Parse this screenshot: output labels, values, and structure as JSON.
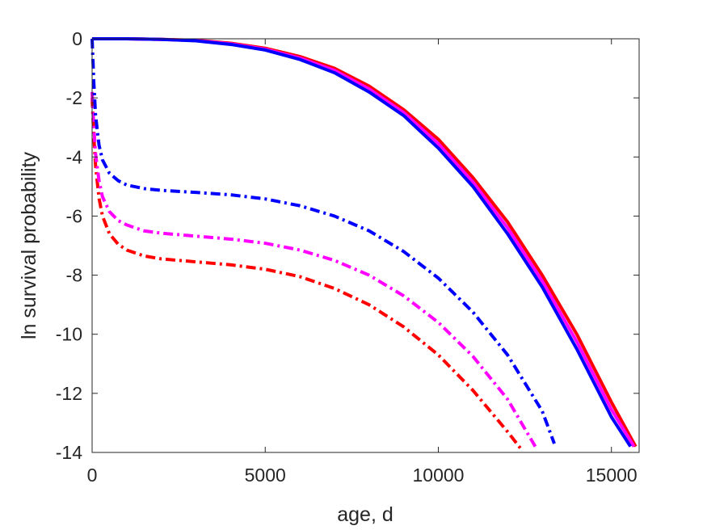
{
  "chart_data": {
    "type": "line",
    "title": "",
    "xlabel": "age, d",
    "ylabel": "ln survival probability",
    "xlim": [
      0,
      15800
    ],
    "ylim": [
      -14,
      0
    ],
    "grid": false,
    "legend": "none",
    "xticks": [
      0,
      5000,
      10000,
      15000
    ],
    "xtick_labels": [
      "0",
      "5000",
      "10000",
      "15000"
    ],
    "yticks": [
      0,
      -2,
      -4,
      -6,
      -8,
      -10,
      -12,
      -14
    ],
    "ytick_labels": [
      "0",
      "-2",
      "-4",
      "-6",
      "-8",
      "-10",
      "-12",
      "-14"
    ],
    "series": [
      {
        "color": "#ff0000",
        "style": "solid",
        "x": [
          0,
          1000,
          2000,
          3000,
          4000,
          5000,
          6000,
          7000,
          8000,
          9000,
          10000,
          11000,
          12000,
          13000,
          14000,
          15000,
          15700
        ],
        "y": [
          0,
          0,
          -0.02,
          -0.05,
          -0.15,
          -0.32,
          -0.6,
          -1.0,
          -1.6,
          -2.4,
          -3.4,
          -4.7,
          -6.2,
          -8.0,
          -10.0,
          -12.3,
          -13.8
        ]
      },
      {
        "color": "#ff00ff",
        "style": "solid",
        "x": [
          0,
          1000,
          2000,
          3000,
          4000,
          5000,
          6000,
          7000,
          8000,
          9000,
          10000,
          11000,
          12000,
          13000,
          14000,
          15000,
          15650
        ],
        "y": [
          0,
          0,
          -0.02,
          -0.06,
          -0.17,
          -0.35,
          -0.65,
          -1.07,
          -1.7,
          -2.5,
          -3.55,
          -4.85,
          -6.4,
          -8.2,
          -10.25,
          -12.55,
          -13.8
        ]
      },
      {
        "color": "#0000ff",
        "style": "solid",
        "x": [
          0,
          1000,
          2000,
          3000,
          4000,
          5000,
          6000,
          7000,
          8000,
          9000,
          10000,
          11000,
          12000,
          13000,
          14000,
          15000,
          15550
        ],
        "y": [
          0,
          0,
          -0.02,
          -0.07,
          -0.19,
          -0.38,
          -0.7,
          -1.15,
          -1.8,
          -2.6,
          -3.7,
          -5.0,
          -6.6,
          -8.4,
          -10.5,
          -12.8,
          -13.8
        ]
      },
      {
        "color": "#ff0000",
        "style": "dashdot",
        "x": [
          0,
          50,
          100,
          200,
          300,
          500,
          750,
          1000,
          1500,
          2000,
          3000,
          4000,
          5000,
          6000,
          7000,
          8000,
          9000,
          10000,
          11000,
          12000,
          12400
        ],
        "y": [
          -2.0,
          -3.3,
          -4.3,
          -5.4,
          -6.0,
          -6.6,
          -6.95,
          -7.15,
          -7.35,
          -7.45,
          -7.55,
          -7.65,
          -7.8,
          -8.05,
          -8.45,
          -9.0,
          -9.75,
          -10.7,
          -11.9,
          -13.3,
          -13.9
        ]
      },
      {
        "color": "#ff00ff",
        "style": "dashdot",
        "x": [
          0,
          50,
          100,
          200,
          300,
          500,
          750,
          1000,
          1500,
          2000,
          3000,
          4000,
          5000,
          6000,
          7000,
          8000,
          9000,
          10000,
          11000,
          12000,
          12800
        ],
        "y": [
          -1.8,
          -3.0,
          -3.9,
          -4.8,
          -5.35,
          -5.85,
          -6.15,
          -6.3,
          -6.5,
          -6.58,
          -6.68,
          -6.78,
          -6.92,
          -7.15,
          -7.5,
          -8.0,
          -8.7,
          -9.6,
          -10.75,
          -12.2,
          -13.8
        ]
      },
      {
        "color": "#0000ff",
        "style": "dashdot",
        "x": [
          0,
          50,
          100,
          200,
          300,
          500,
          750,
          1000,
          1500,
          2000,
          3000,
          4000,
          5000,
          6000,
          7000,
          8000,
          9000,
          10000,
          11000,
          12000,
          13000,
          13350
        ],
        "y": [
          0,
          -1.5,
          -2.6,
          -3.6,
          -4.1,
          -4.55,
          -4.8,
          -4.95,
          -5.07,
          -5.13,
          -5.2,
          -5.28,
          -5.42,
          -5.65,
          -6.0,
          -6.5,
          -7.2,
          -8.1,
          -9.25,
          -10.7,
          -12.6,
          -13.7
        ]
      }
    ]
  }
}
